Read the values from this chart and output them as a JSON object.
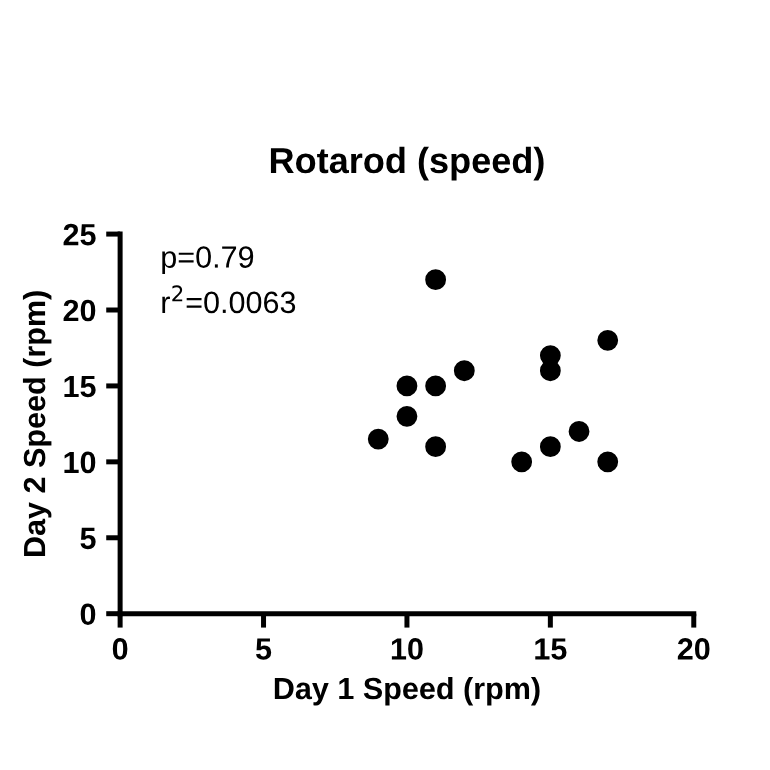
{
  "chart_data": {
    "type": "scatter",
    "title": "Rotarod (speed)",
    "xlabel": "Day 1 Speed (rpm)",
    "ylabel": "Day 2 Speed (rpm)",
    "annotations": [
      "p=0.79",
      "r$^{2}$=0.0063"
    ],
    "x": [
      9,
      10,
      10,
      11,
      11,
      11,
      12,
      14,
      15,
      15,
      15,
      16,
      17,
      17
    ],
    "series": [
      {
        "color": "#000000",
        "values": [
          11.5,
          15,
          13,
          22,
          15,
          11,
          16,
          10,
          17,
          16,
          11,
          12,
          18,
          10
        ]
      }
    ],
    "xlim": [
      0,
      20
    ],
    "xticks": [
      0,
      5,
      10,
      15,
      20
    ],
    "ylim": [
      0,
      25
    ],
    "yticks": [
      0,
      5,
      10,
      15,
      20,
      25
    ],
    "marker": "circle",
    "grid": false,
    "legend": false
  }
}
